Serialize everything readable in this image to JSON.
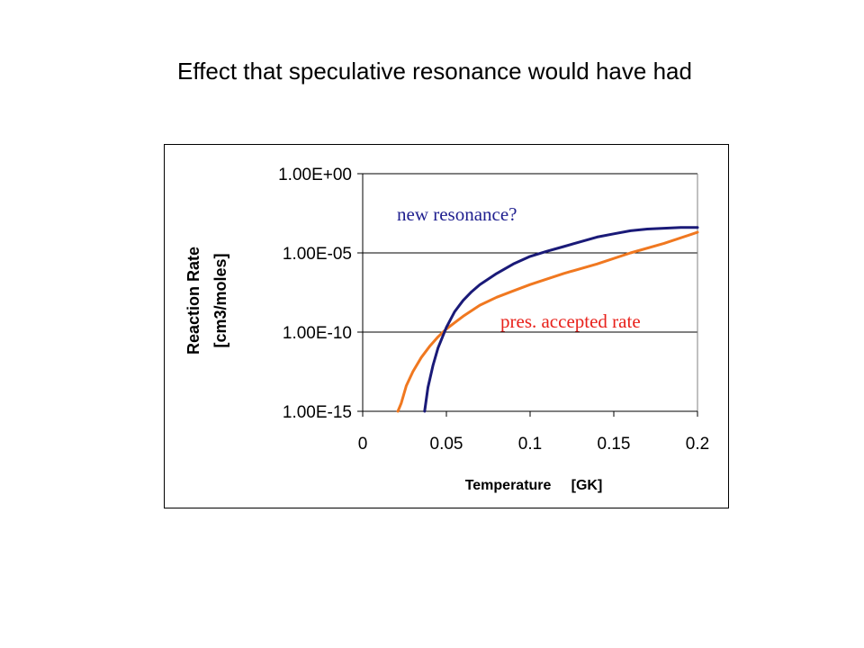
{
  "slide": {
    "title": "Effect that speculative resonance would have had"
  },
  "chart_data": {
    "type": "line",
    "xlabel": "Temperature     [GK]",
    "ylabel_line1": "Reaction Rate",
    "ylabel_line2": "[cm3/moles]",
    "x_ticks": [
      "0",
      "0.05",
      "0.1",
      "0.15",
      "0.2"
    ],
    "y_ticks": [
      "1.00E+00",
      "1.00E-05",
      "1.00E-10",
      "1.00E-15"
    ],
    "xlim": [
      0,
      0.2
    ],
    "ylim_log10": [
      -15,
      0
    ],
    "y_scale": "log",
    "grid": "horizontal",
    "annotations": [
      {
        "text": "new resonance?",
        "color": "#1f1f8f",
        "series": 1
      },
      {
        "text": "pres. accepted rate",
        "color": "#e8201a",
        "series": 0
      }
    ],
    "series": [
      {
        "color": "#f07820",
        "x": [
          0.021,
          0.023,
          0.026,
          0.03,
          0.035,
          0.04,
          0.045,
          0.05,
          0.06,
          0.07,
          0.08,
          0.09,
          0.1,
          0.12,
          0.14,
          0.16,
          0.18,
          0.2
        ],
        "y": [
          1e-15,
          3.2e-15,
          4e-14,
          3.2e-13,
          2.5e-12,
          1.26e-11,
          5e-11,
          1.58e-10,
          1e-09,
          5e-09,
          1.58e-08,
          4e-08,
          1e-07,
          5e-07,
          2e-06,
          1e-05,
          4e-05,
          0.0002
        ]
      },
      {
        "color": "#1a1a78",
        "x": [
          0.037,
          0.039,
          0.042,
          0.045,
          0.05,
          0.055,
          0.06,
          0.065,
          0.07,
          0.08,
          0.09,
          0.1,
          0.11,
          0.12,
          0.13,
          0.14,
          0.15,
          0.16,
          0.17,
          0.18,
          0.19,
          0.2
        ],
        "y": [
          1e-15,
          3.2e-14,
          7.9e-13,
          1e-11,
          2e-10,
          2e-09,
          1e-08,
          3.5e-08,
          1e-07,
          5e-07,
          2e-06,
          6e-06,
          1.26e-05,
          2.5e-05,
          5e-05,
          0.0001,
          0.00016,
          0.00025,
          0.00032,
          0.00036,
          0.0004,
          0.0004
        ]
      }
    ]
  }
}
